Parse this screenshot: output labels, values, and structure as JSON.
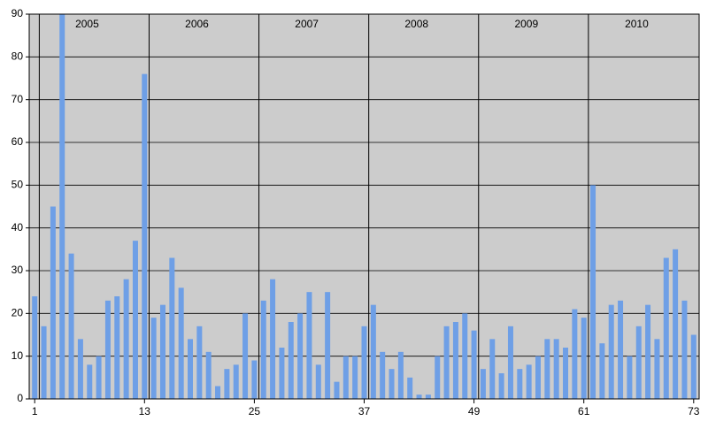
{
  "chart_data": {
    "type": "bar",
    "x": [
      1,
      2,
      3,
      4,
      5,
      6,
      7,
      8,
      9,
      10,
      11,
      12,
      13,
      14,
      15,
      16,
      17,
      18,
      19,
      20,
      21,
      22,
      23,
      24,
      25,
      26,
      27,
      28,
      29,
      30,
      31,
      32,
      33,
      34,
      35,
      36,
      37,
      38,
      39,
      40,
      41,
      42,
      43,
      44,
      45,
      46,
      47,
      48,
      49,
      50,
      51,
      52,
      53,
      54,
      55,
      56,
      57,
      58,
      59,
      60,
      61,
      62,
      63,
      64,
      65,
      66,
      67,
      68,
      69,
      70,
      71,
      72,
      73
    ],
    "values": [
      24,
      17,
      45,
      90,
      34,
      14,
      8,
      10,
      23,
      24,
      28,
      37,
      76,
      19,
      22,
      33,
      26,
      14,
      17,
      11,
      3,
      7,
      8,
      20,
      9,
      23,
      28,
      12,
      18,
      20,
      25,
      8,
      25,
      4,
      10,
      10,
      17,
      22,
      11,
      7,
      11,
      5,
      1,
      1,
      10,
      17,
      18,
      20,
      16,
      7,
      14,
      6,
      17,
      7,
      8,
      10,
      14,
      14,
      12,
      21,
      19,
      50,
      13,
      22,
      23,
      10,
      17,
      22,
      14,
      33,
      35,
      23,
      15
    ],
    "color": "#6e9fe6",
    "background": "#cccccc",
    "xlim": [
      0.4,
      73.6
    ],
    "xticks": [
      1,
      13,
      25,
      37,
      49,
      61,
      73
    ],
    "ylim": [
      0,
      90
    ],
    "yticks": [
      0,
      10,
      20,
      30,
      40,
      50,
      60,
      70,
      80,
      90
    ],
    "grid": true,
    "periods": [
      {
        "label": "2005",
        "start": 1.5
      },
      {
        "label": "2006",
        "start": 13.5
      },
      {
        "label": "2007",
        "start": 25.5
      },
      {
        "label": "2008",
        "start": 37.5
      },
      {
        "label": "2009",
        "start": 49.5
      },
      {
        "label": "2010",
        "start": 61.5
      }
    ]
  }
}
